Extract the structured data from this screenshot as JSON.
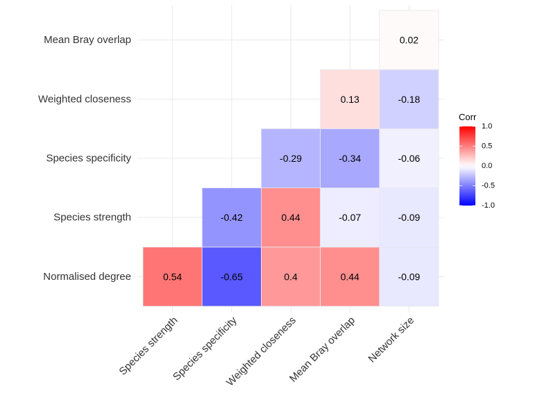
{
  "chart_data": {
    "type": "heatmap",
    "title": "",
    "xlabel": "",
    "ylabel": "",
    "x_categories": [
      "Species strength",
      "Species specificity",
      "Weighted closeness",
      "Mean Bray overlap",
      "Network size"
    ],
    "y_categories": [
      "Normalised degree",
      "Species strength",
      "Species specificity",
      "Weighted closeness",
      "Mean Bray overlap"
    ],
    "cells": [
      {
        "row": "Normalised degree",
        "col": "Species strength",
        "value": 0.54,
        "label": "0.54"
      },
      {
        "row": "Normalised degree",
        "col": "Species specificity",
        "value": -0.65,
        "label": "-0.65"
      },
      {
        "row": "Normalised degree",
        "col": "Weighted closeness",
        "value": 0.4,
        "label": "0.4"
      },
      {
        "row": "Normalised degree",
        "col": "Mean Bray overlap",
        "value": 0.44,
        "label": "0.44"
      },
      {
        "row": "Normalised degree",
        "col": "Network size",
        "value": -0.09,
        "label": "-0.09"
      },
      {
        "row": "Species strength",
        "col": "Species specificity",
        "value": -0.42,
        "label": "-0.42"
      },
      {
        "row": "Species strength",
        "col": "Weighted closeness",
        "value": 0.44,
        "label": "0.44"
      },
      {
        "row": "Species strength",
        "col": "Mean Bray overlap",
        "value": -0.07,
        "label": "-0.07"
      },
      {
        "row": "Species strength",
        "col": "Network size",
        "value": -0.09,
        "label": "-0.09"
      },
      {
        "row": "Species specificity",
        "col": "Weighted closeness",
        "value": -0.29,
        "label": "-0.29"
      },
      {
        "row": "Species specificity",
        "col": "Mean Bray overlap",
        "value": -0.34,
        "label": "-0.34"
      },
      {
        "row": "Species specificity",
        "col": "Network size",
        "value": -0.06,
        "label": "-0.06"
      },
      {
        "row": "Weighted closeness",
        "col": "Mean Bray overlap",
        "value": 0.13,
        "label": "0.13"
      },
      {
        "row": "Weighted closeness",
        "col": "Network size",
        "value": -0.18,
        "label": "-0.18"
      },
      {
        "row": "Mean Bray overlap",
        "col": "Network size",
        "value": 0.02,
        "label": "0.02"
      }
    ],
    "legend": {
      "title": "Corr",
      "range": [
        -1.0,
        1.0
      ],
      "ticks": [
        1.0,
        0.5,
        0.0,
        -0.5,
        -1.0
      ],
      "tick_labels": [
        "1.0",
        "0.5",
        "0.0",
        "-0.5",
        "-1.0"
      ],
      "colors": {
        "low": "#0000ff",
        "mid": "#ffffff",
        "high": "#ff0000"
      },
      "placement": "right"
    }
  }
}
